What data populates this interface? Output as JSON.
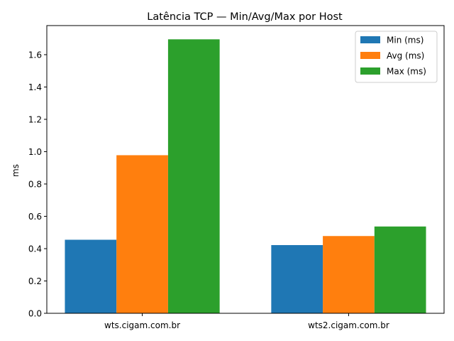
{
  "chart_data": {
    "type": "bar",
    "title": "Latência TCP — Min/Avg/Max por Host",
    "xlabel": "",
    "ylabel": "ms",
    "categories": [
      "wts.cigam.com.br",
      "wts2.cigam.com.br"
    ],
    "series": [
      {
        "name": "Min (ms)",
        "color": "#1f77b4",
        "values": [
          0.455,
          0.422
        ]
      },
      {
        "name": "Avg (ms)",
        "color": "#ff7f0e",
        "values": [
          0.978,
          0.478
        ]
      },
      {
        "name": "Max (ms)",
        "color": "#2ca02c",
        "values": [
          1.695,
          0.537
        ]
      }
    ],
    "ylim": [
      0,
      1.78
    ],
    "yticks": [
      0.0,
      0.2,
      0.4,
      0.6,
      0.8,
      1.0,
      1.2,
      1.4,
      1.6
    ],
    "ytick_labels": [
      "0.0",
      "0.2",
      "0.4",
      "0.6",
      "0.8",
      "1.0",
      "1.2",
      "1.4",
      "1.6"
    ],
    "grid": false,
    "legend_position": "top-right"
  }
}
